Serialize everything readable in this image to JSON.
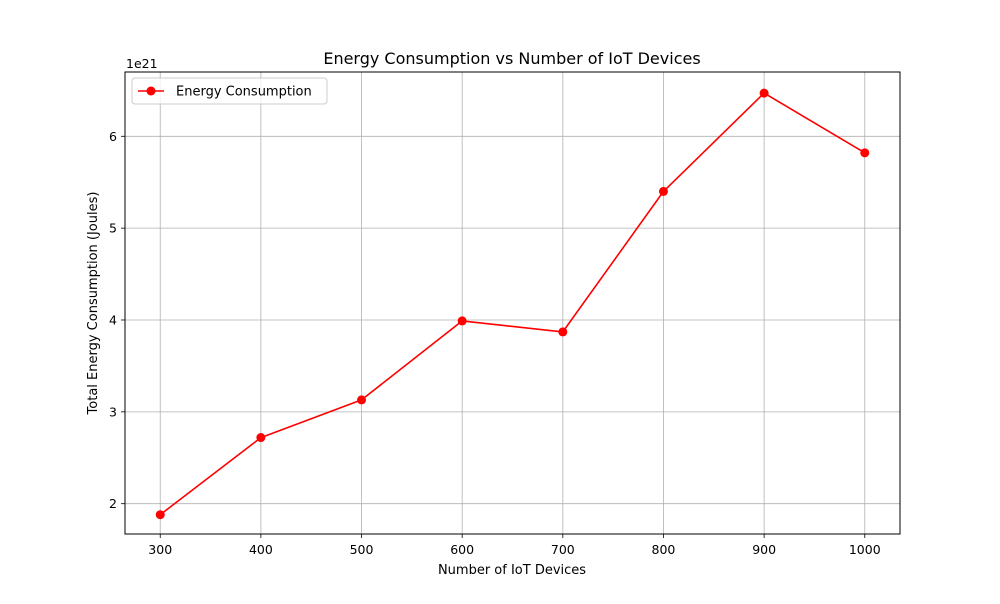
{
  "chart_data": {
    "type": "line",
    "title": "Energy Consumption vs Number of IoT Devices",
    "xlabel": "Number of IoT Devices",
    "ylabel": "Total Energy Consumption (Joules)",
    "y_offset_label": "1e21",
    "x": [
      300,
      400,
      500,
      600,
      700,
      800,
      900,
      1000
    ],
    "series": [
      {
        "name": "Energy Consumption",
        "color": "#ff0000",
        "marker": "circle",
        "values": [
          1.88,
          2.72,
          3.13,
          3.99,
          3.87,
          5.4,
          6.47,
          5.82
        ]
      }
    ],
    "y_scale_factor": 1e+21,
    "xlim": [
      265,
      1035
    ],
    "ylim": [
      1.67,
      6.7
    ],
    "xticks": [
      300,
      400,
      500,
      600,
      700,
      800,
      900,
      1000
    ],
    "yticks": [
      2,
      3,
      4,
      5,
      6
    ],
    "grid": true,
    "legend_position": "top-left"
  }
}
